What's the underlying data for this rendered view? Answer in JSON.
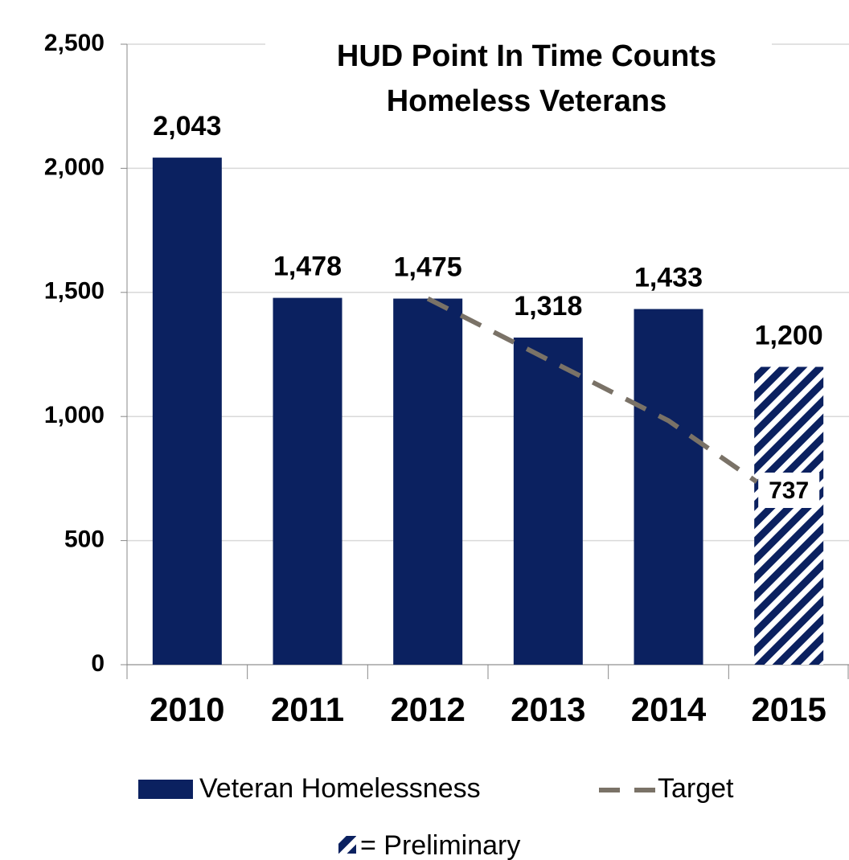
{
  "chart_data": {
    "type": "bar",
    "title": [
      "HUD Point In Time Counts",
      "Homeless Veterans"
    ],
    "categories": [
      "2010",
      "2011",
      "2012",
      "2013",
      "2014",
      "2015"
    ],
    "series": [
      {
        "name": "Veteran Homelessness",
        "color": "#0b2160",
        "type": "bar",
        "values": [
          2043,
          1478,
          1475,
          1318,
          1433,
          1200
        ],
        "value_labels": [
          "2,043",
          "1,478",
          "1,475",
          "1,318",
          "1,433",
          "1,200"
        ],
        "hatched": [
          false,
          false,
          false,
          false,
          false,
          true
        ]
      },
      {
        "name": "Target",
        "color": "#7a7267",
        "label_color": "#c00000",
        "type": "line",
        "dashed": true,
        "values": [
          null,
          null,
          1475,
          1229,
          983,
          737
        ]
      }
    ],
    "hatch_note": "= Preliminary",
    "ylim": [
      0,
      2500
    ],
    "yticks": [
      0,
      {
        "value": 500,
        "label": "500"
      },
      {
        "value": 1000,
        "label": "1,000"
      },
      {
        "value": 1500,
        "label": "1,500"
      },
      {
        "value": 2000,
        "label": "2,000"
      },
      {
        "value": 2500,
        "label": "2,500"
      }
    ],
    "grid": true,
    "legend": "bottom"
  }
}
